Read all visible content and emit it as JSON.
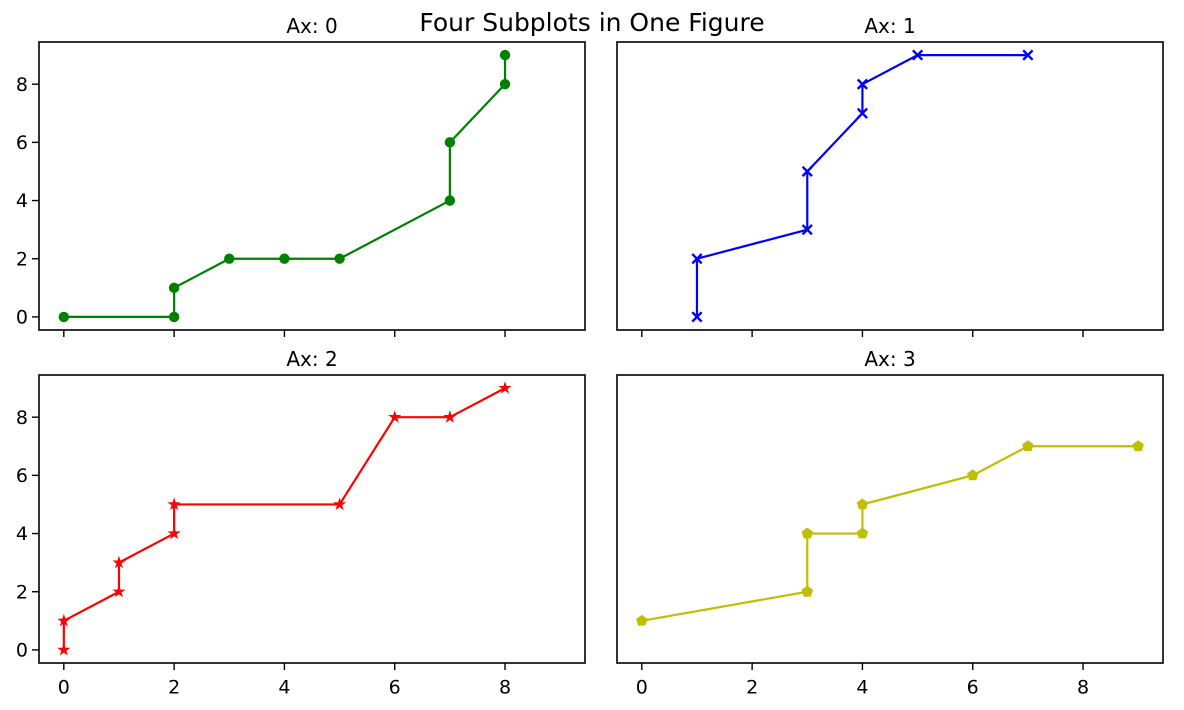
{
  "figure": {
    "title": "Four Subplots in One Figure",
    "background_color": "#ffffff",
    "text_color": "#000000",
    "spine_color": "#000000"
  },
  "chart_data": [
    {
      "type": "line",
      "title": "Ax: 0",
      "color": "#008000",
      "marker": "circle",
      "x": [
        0,
        2,
        2,
        3,
        4,
        5,
        7,
        7,
        8,
        8
      ],
      "y": [
        0,
        0,
        1,
        2,
        2,
        2,
        4,
        6,
        8,
        9
      ],
      "xlim": [
        -0.45,
        9.45
      ],
      "ylim": [
        -0.45,
        9.45
      ],
      "xticks": [
        0,
        2,
        4,
        6,
        8
      ],
      "yticks": [
        0,
        2,
        4,
        6,
        8
      ],
      "ticks": {
        "x_marks": true,
        "x_labels": false,
        "y_marks": true,
        "y_labels": true
      },
      "grid": false,
      "legend": null
    },
    {
      "type": "line",
      "title": "Ax: 1",
      "color": "#0000ff",
      "marker": "x",
      "x": [
        1,
        1,
        3,
        3,
        4,
        4,
        5,
        7
      ],
      "y": [
        0,
        2,
        3,
        5,
        7,
        8,
        9,
        9
      ],
      "xlim": [
        -0.45,
        9.45
      ],
      "ylim": [
        -0.45,
        9.45
      ],
      "xticks": [
        0,
        2,
        4,
        6,
        8
      ],
      "yticks": [
        0,
        2,
        4,
        6,
        8
      ],
      "ticks": {
        "x_marks": true,
        "x_labels": false,
        "y_marks": false,
        "y_labels": false
      },
      "grid": false,
      "legend": null
    },
    {
      "type": "line",
      "title": "Ax: 2",
      "color": "#ff0000",
      "marker": "star",
      "x": [
        0,
        0,
        1,
        1,
        2,
        2,
        5,
        6,
        7,
        8
      ],
      "y": [
        0,
        1,
        2,
        3,
        4,
        5,
        5,
        8,
        8,
        9
      ],
      "xlim": [
        -0.45,
        9.45
      ],
      "ylim": [
        -0.45,
        9.45
      ],
      "xticks": [
        0,
        2,
        4,
        6,
        8
      ],
      "yticks": [
        0,
        2,
        4,
        6,
        8
      ],
      "ticks": {
        "x_marks": true,
        "x_labels": true,
        "y_marks": true,
        "y_labels": true
      },
      "grid": false,
      "legend": null
    },
    {
      "type": "line",
      "title": "Ax: 3",
      "color": "#bfbf00",
      "marker": "pentagon",
      "x": [
        0,
        3,
        3,
        4,
        4,
        6,
        7,
        9
      ],
      "y": [
        1,
        2,
        4,
        4,
        5,
        6,
        7,
        7
      ],
      "xlim": [
        -0.45,
        9.45
      ],
      "ylim": [
        -0.45,
        9.45
      ],
      "xticks": [
        0,
        2,
        4,
        6,
        8
      ],
      "yticks": [
        0,
        2,
        4,
        6,
        8
      ],
      "ticks": {
        "x_marks": true,
        "x_labels": true,
        "y_marks": false,
        "y_labels": false
      },
      "grid": false,
      "legend": null
    }
  ]
}
